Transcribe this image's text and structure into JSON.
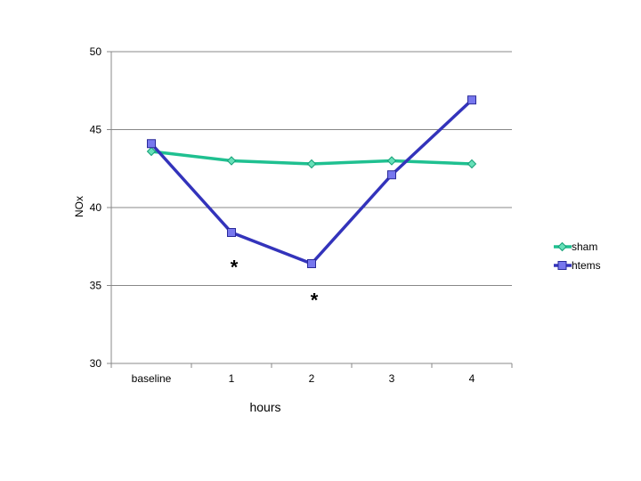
{
  "chart_data": {
    "type": "line",
    "categories": [
      "baseline",
      "1",
      "2",
      "3",
      "4"
    ],
    "series": [
      {
        "name": "sham",
        "values": [
          43.6,
          43.0,
          42.8,
          43.0,
          42.8
        ],
        "color": "#1fc090",
        "marker": "diamond"
      },
      {
        "name": "htems",
        "values": [
          44.1,
          38.4,
          36.4,
          42.1,
          46.9
        ],
        "color": "#3333bb",
        "marker": "square"
      }
    ],
    "xlabel": "hours",
    "ylabel": "NOx",
    "ylim": [
      30,
      50
    ],
    "yticks": [
      30,
      35,
      40,
      45,
      50
    ],
    "grid": true,
    "legend_position": "right",
    "annotations": [
      {
        "text": "*",
        "category": "1",
        "value": 36.2
      },
      {
        "text": "*",
        "category": "2",
        "value": 34.1
      }
    ]
  }
}
